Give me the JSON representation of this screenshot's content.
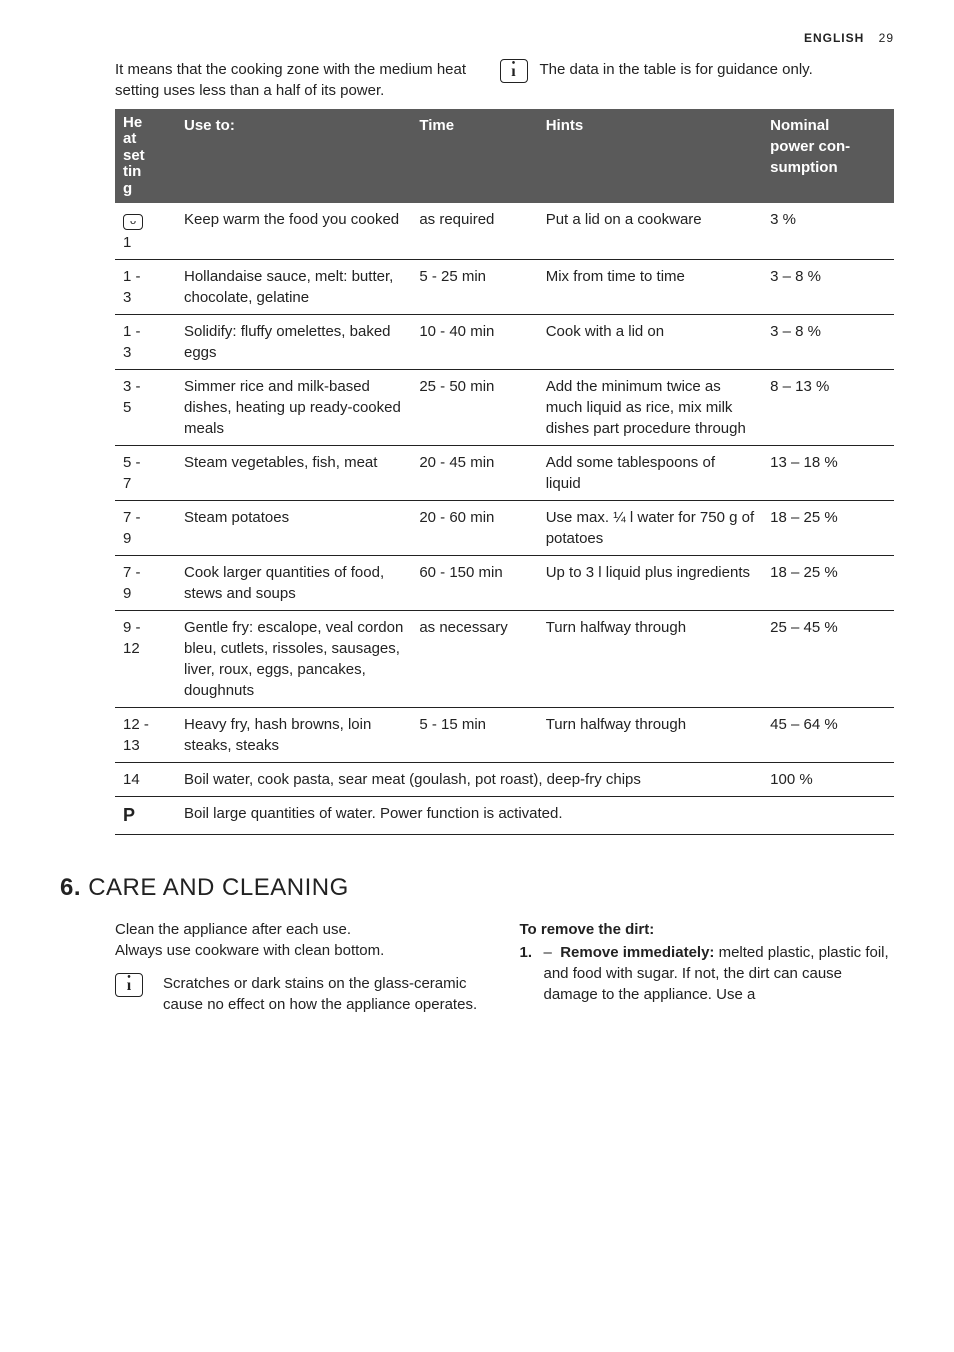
{
  "header": {
    "lang": "ENGLISH",
    "page": "29"
  },
  "intro": {
    "left": "It means that the cooking zone with the medium heat setting uses less than a half of its power.",
    "right": "The data in the table is for guidance only."
  },
  "table": {
    "columns": {
      "heat": "Heat setting",
      "use": "Use to:",
      "time": "Time",
      "hints": "Hints",
      "power": "Nominal power consumption"
    },
    "rows": [
      {
        "heat_icon": true,
        "heat": "1",
        "use": "Keep warm the food you cooked",
        "time": "as required",
        "hints": "Put a lid on a cookware",
        "power": "3 %"
      },
      {
        "heat": "1 - 3",
        "use": "Hollandaise sauce, melt: butter, chocolate, gelatine",
        "time": "5 - 25 min",
        "hints": "Mix from time to time",
        "power": "3 – 8 %"
      },
      {
        "heat": "1 - 3",
        "use": "Solidify: fluffy omelettes, baked eggs",
        "time": "10 - 40 min",
        "hints": "Cook with a lid on",
        "power": "3 – 8 %"
      },
      {
        "heat": "3 - 5",
        "use": "Simmer rice and milk-based dishes, heating up ready-cooked meals",
        "time": "25 - 50 min",
        "hints": "Add the minimum twice as much liquid as rice, mix milk dishes part procedure through",
        "power": "8 – 13 %"
      },
      {
        "heat": "5 - 7",
        "use": "Steam vegetables, fish, meat",
        "time": "20 - 45 min",
        "hints": "Add some tablespoons of liquid",
        "power": "13 – 18 %"
      },
      {
        "heat": "7 - 9",
        "use": "Steam potatoes",
        "time": "20 - 60 min",
        "hints": "Use max. ¼ l water for 750 g of potatoes",
        "power": "18 – 25 %"
      },
      {
        "heat": "7 - 9",
        "use": "Cook larger quantities of food, stews and soups",
        "time": "60 - 150 min",
        "hints": "Up to 3 l liquid plus ingredients",
        "power": "18 – 25 %"
      },
      {
        "heat": "9 - 12",
        "use": "Gentle fry: escalope, veal cordon bleu, cutlets, rissoles, sausages, liver, roux, eggs, pancakes, doughnuts",
        "time": "as necessary",
        "hints": "Turn halfway through",
        "power": "25 – 45 %"
      },
      {
        "heat": "12 - 13",
        "use": "Heavy fry, hash browns, loin steaks, steaks",
        "time": "5 - 15 min",
        "hints": "Turn halfway through",
        "power": "45 – 64 %"
      },
      {
        "heat": "14",
        "use_span": "Boil water, cook pasta, sear meat (goulash, pot roast), deep-fry chips",
        "power": "100 %"
      },
      {
        "heat_p": true,
        "use_full": "Boil large quantities of water. Power function is activated."
      }
    ]
  },
  "section": {
    "num": "6.",
    "title": "CARE AND CLEANING"
  },
  "care": {
    "p1": "Clean the appliance after each use.",
    "p2": "Always use cookware with clean bottom.",
    "info": "Scratches or dark stains on the glass-ceramic cause no effect on how the appliance operates.",
    "remove_title": "To remove the dirt:",
    "item_num": "1.",
    "bold": "Remove immediately:",
    "rest": " melted plastic, plastic foil, and food with sugar. If not, the dirt can cause damage to the appliance. Use a"
  }
}
